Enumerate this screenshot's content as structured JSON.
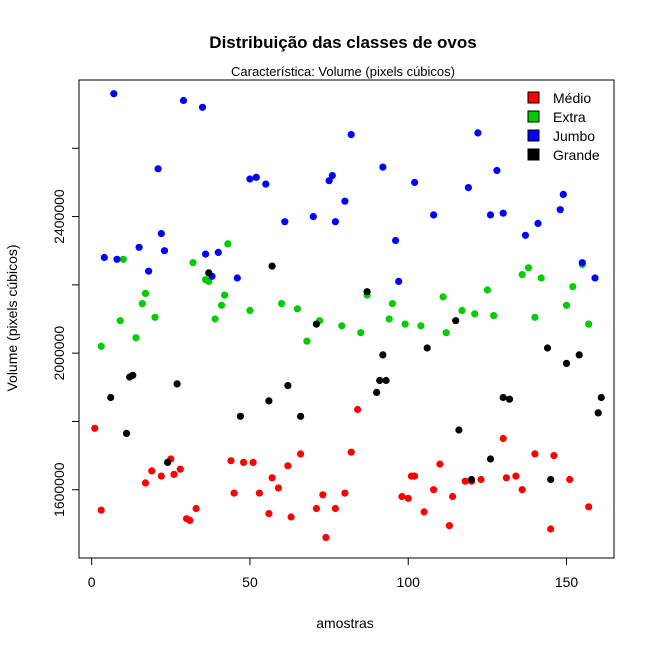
{
  "chart_data": {
    "type": "scatter",
    "title": "Distribuição das classes de ovos",
    "subtitle": "Característica: Volume (pixels cúbicos)",
    "xlabel": "amostras",
    "ylabel": "Volume (pixels cúbicos)",
    "xlim": [
      -4,
      165
    ],
    "ylim": [
      1400000,
      2800000
    ],
    "xticks": [
      0,
      50,
      100,
      150
    ],
    "yticks": [
      1600000,
      2000000,
      2400000
    ],
    "yticks_unlabeled": [
      1800000,
      2200000,
      2600000
    ],
    "legend_position": "top-right",
    "series": [
      {
        "name": "Médio",
        "color": "#ff0000",
        "x": [
          1,
          3,
          17,
          19,
          22,
          25,
          26,
          28,
          30,
          31,
          33,
          44,
          45,
          48,
          51,
          53,
          56,
          57,
          59,
          62,
          63,
          66,
          71,
          73,
          74,
          77,
          80,
          82,
          84,
          98,
          100,
          101,
          102,
          105,
          108,
          110,
          113,
          114,
          118,
          120,
          123,
          130,
          131,
          134,
          136,
          140,
          145,
          146,
          151,
          157
        ],
        "y": [
          1780000,
          1540000,
          1620000,
          1655000,
          1640000,
          1690000,
          1645000,
          1660000,
          1515000,
          1510000,
          1545000,
          1685000,
          1590000,
          1680000,
          1680000,
          1590000,
          1530000,
          1635000,
          1605000,
          1670000,
          1520000,
          1705000,
          1545000,
          1585000,
          1460000,
          1545000,
          1590000,
          1710000,
          1835000,
          1580000,
          1575000,
          1640000,
          1640000,
          1535000,
          1600000,
          1675000,
          1495000,
          1580000,
          1625000,
          1625000,
          1630000,
          1750000,
          1635000,
          1640000,
          1600000,
          1705000,
          1485000,
          1700000,
          1630000,
          1550000
        ]
      },
      {
        "name": "Extra",
        "color": "#00cd00",
        "x": [
          3,
          9,
          10,
          14,
          16,
          17,
          20,
          32,
          36,
          37,
          39,
          41,
          42,
          43,
          50,
          60,
          65,
          68,
          72,
          79,
          85,
          87,
          94,
          95,
          99,
          104,
          111,
          112,
          117,
          121,
          125,
          127,
          136,
          138,
          140,
          142,
          150,
          152,
          155,
          157
        ],
        "y": [
          2020000,
          2095000,
          2275000,
          2045000,
          2145000,
          2175000,
          2105000,
          2265000,
          2215000,
          2210000,
          2100000,
          2140000,
          2170000,
          2320000,
          2125000,
          2145000,
          2130000,
          2035000,
          2095000,
          2080000,
          2060000,
          2170000,
          2100000,
          2145000,
          2085000,
          2080000,
          2165000,
          2060000,
          2125000,
          2115000,
          2185000,
          2110000,
          2230000,
          2250000,
          2105000,
          2220000,
          2140000,
          2195000,
          2260000,
          2085000
        ]
      },
      {
        "name": "Jumbo",
        "color": "#0000ff",
        "x": [
          4,
          7,
          8,
          15,
          18,
          21,
          22,
          23,
          29,
          35,
          36,
          38,
          40,
          46,
          50,
          52,
          55,
          61,
          70,
          75,
          76,
          77,
          80,
          82,
          92,
          96,
          97,
          102,
          108,
          119,
          122,
          126,
          128,
          130,
          137,
          141,
          148,
          149,
          155,
          159
        ],
        "y": [
          2280000,
          2760000,
          2275000,
          2310000,
          2240000,
          2540000,
          2350000,
          2300000,
          2740000,
          2720000,
          2290000,
          2225000,
          2295000,
          2220000,
          2510000,
          2515000,
          2495000,
          2385000,
          2400000,
          2505000,
          2520000,
          2385000,
          2445000,
          2640000,
          2545000,
          2330000,
          2210000,
          2500000,
          2405000,
          2485000,
          2645000,
          2405000,
          2535000,
          2410000,
          2345000,
          2380000,
          2420000,
          2465000,
          2265000,
          2220000
        ]
      },
      {
        "name": "Grande",
        "color": "#000000",
        "x": [
          6,
          11,
          12,
          13,
          24,
          27,
          37,
          47,
          56,
          57,
          62,
          66,
          71,
          87,
          90,
          91,
          92,
          93,
          106,
          115,
          116,
          120,
          126,
          130,
          132,
          144,
          145,
          150,
          154,
          160,
          161
        ],
        "y": [
          1870000,
          1765000,
          1930000,
          1935000,
          1680000,
          1910000,
          2235000,
          1815000,
          1860000,
          2255000,
          1905000,
          1815000,
          2085000,
          2180000,
          1885000,
          1920000,
          1995000,
          1920000,
          2015000,
          2095000,
          1775000,
          1630000,
          1690000,
          1870000,
          1865000,
          2015000,
          1630000,
          1970000,
          1995000,
          1825000,
          1870000
        ]
      }
    ]
  }
}
